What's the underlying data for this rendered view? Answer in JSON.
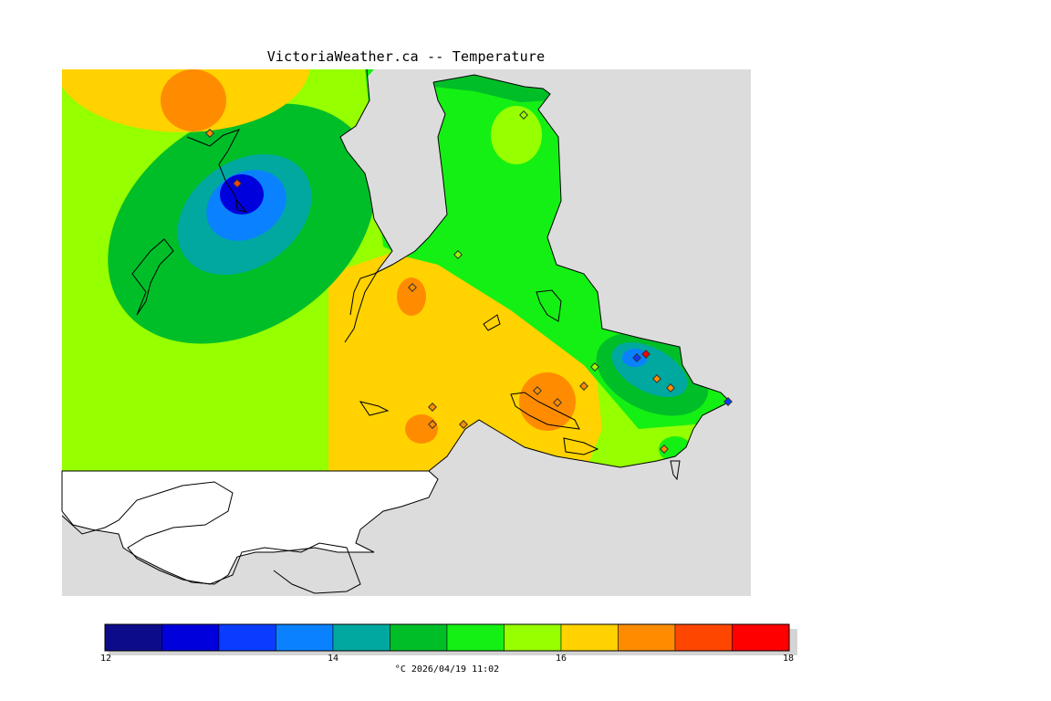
{
  "title": "VictoriaWeather.ca -- Temperature",
  "legend": {
    "colors": [
      "#0c0c8a",
      "#0000dc",
      "#0a3cff",
      "#0a82ff",
      "#00a8a0",
      "#00be28",
      "#14f014",
      "#96ff00",
      "#ffd200",
      "#ff8c00",
      "#ff4600",
      "#ff0000"
    ],
    "min": 12,
    "max": 18,
    "tick_labels": [
      "12",
      "14",
      "16",
      "18"
    ],
    "caption": "°C 2026/04/19 11:02"
  },
  "map": {
    "ocean_color": "#dcdcdc",
    "outside_color": "#ffffff",
    "station_count": 18,
    "field_levels_celsius": [
      16.25,
      15.75,
      15.25,
      14.75,
      14.25,
      13.75,
      13.25,
      12.75,
      16.75,
      17.25
    ]
  }
}
